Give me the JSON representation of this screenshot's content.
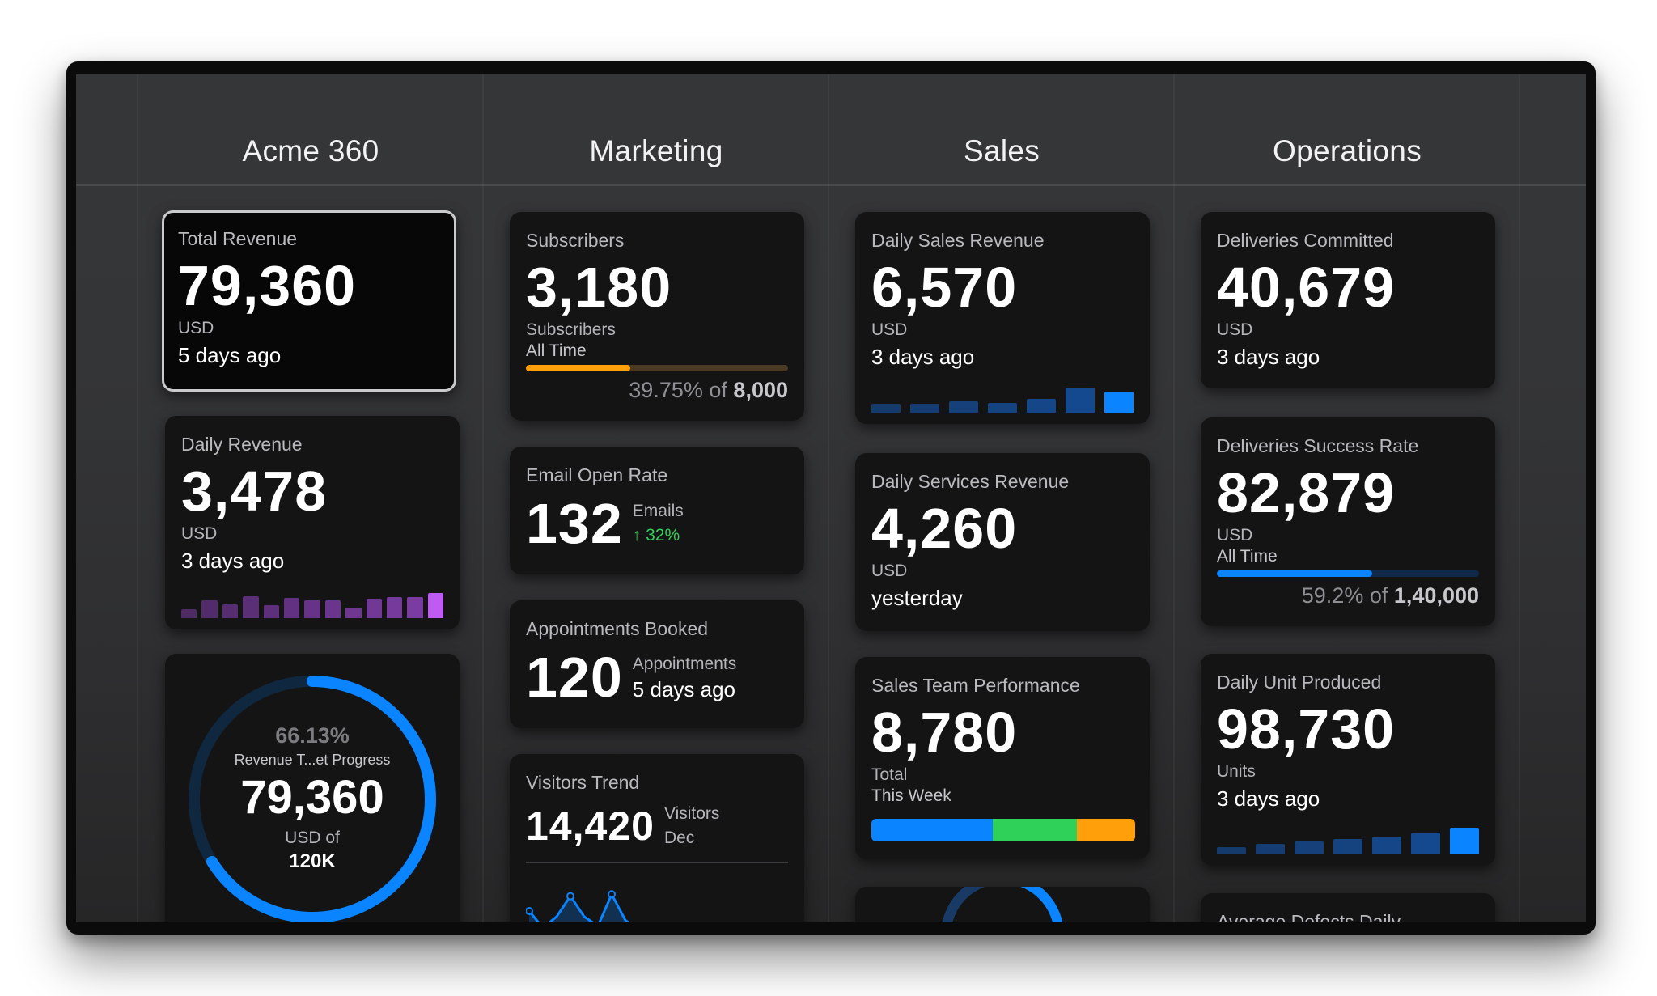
{
  "colors": {
    "accent_blue": "#0a84ff",
    "purple": "#bf5af2",
    "orange": "#ff9f0a",
    "green": "#30d158",
    "card_bg": "#141415"
  },
  "columns": [
    {
      "title": "Acme 360"
    },
    {
      "title": "Marketing"
    },
    {
      "title": "Sales"
    },
    {
      "title": "Operations"
    }
  ],
  "acme": {
    "total_revenue": {
      "title": "Total Revenue",
      "value": "79,360",
      "unit": "USD",
      "time": "5 days ago"
    },
    "daily_revenue": {
      "title": "Daily Revenue",
      "value": "3,478",
      "unit": "USD",
      "time": "3 days ago",
      "bar_values": [
        0.26,
        0.5,
        0.38,
        0.62,
        0.36,
        0.56,
        0.5,
        0.5,
        0.3,
        0.54,
        0.58,
        0.6,
        0.7
      ]
    },
    "ring": {
      "percent_label": "66.13%",
      "percent": 66.13,
      "label": "Revenue T...et Progress",
      "value": "79,360",
      "unit_of": "USD of",
      "target": "120K"
    }
  },
  "marketing": {
    "subscribers": {
      "title": "Subscribers",
      "value": "3,180",
      "unit": "Subscribers",
      "period": "All Time",
      "progress": 39.75,
      "pct": "39.75%",
      "of": "of",
      "target": "8,000"
    },
    "email": {
      "title": "Email Open Rate",
      "value": "132",
      "unit": "Emails",
      "delta": "↑ 32%"
    },
    "appointments": {
      "title": "Appointments Booked",
      "value": "120",
      "unit": "Appointments",
      "time": "5 days ago"
    },
    "visitors": {
      "title": "Visitors Trend",
      "value": "14,420",
      "unit": "Visitors",
      "period": "Dec",
      "trend": [
        0.5,
        0.05,
        0.35,
        0.9,
        0.35,
        0.1,
        0.95,
        0.25,
        0
      ]
    }
  },
  "sales": {
    "daily_sales": {
      "title": "Daily Sales Revenue",
      "value": "6,570",
      "unit": "USD",
      "time": "3 days ago",
      "bar_values": [
        0.24,
        0.26,
        0.32,
        0.28,
        0.38,
        0.7,
        0.58
      ]
    },
    "daily_services": {
      "title": "Daily Services Revenue",
      "value": "4,260",
      "unit": "USD",
      "time": "yesterday"
    },
    "team": {
      "title": "Sales Team Performance",
      "value": "8,780",
      "unit": "Total",
      "period": "This Week",
      "segments": [
        0.46,
        0.32,
        0.22
      ]
    }
  },
  "operations": {
    "deliveries_committed": {
      "title": "Deliveries Committed",
      "value": "40,679",
      "unit": "USD",
      "time": "3 days ago"
    },
    "success_rate": {
      "title": "Deliveries Success Rate",
      "value": "82,879",
      "unit": "USD",
      "period": "All Time",
      "progress": 59.2,
      "pct": "59.2%",
      "of": "of",
      "target": "1,40,000"
    },
    "units": {
      "title": "Daily Unit Produced",
      "value": "98,730",
      "unit": "Units",
      "time": "3 days ago",
      "bar_values": [
        0.2,
        0.3,
        0.36,
        0.44,
        0.5,
        0.62,
        0.74
      ]
    },
    "defects": {
      "title": "Average Defects Daily"
    }
  }
}
